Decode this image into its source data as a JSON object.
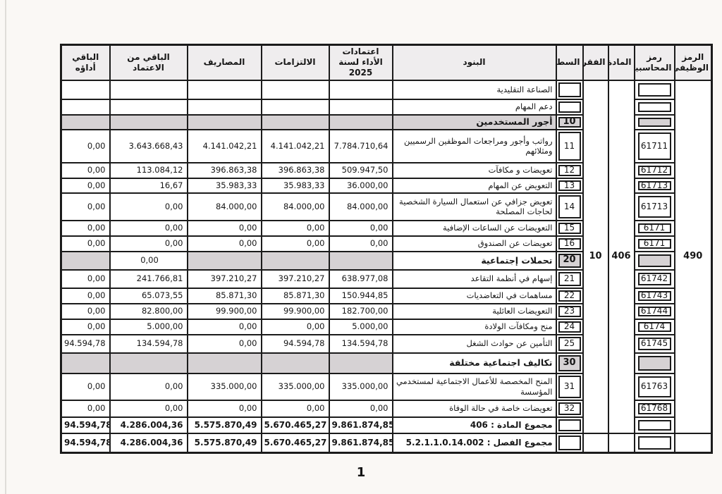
{
  "doc": {
    "page_number": "1",
    "table": {
      "columns": [
        {
          "id": "func_code",
          "label": "الرمز الوظيفي"
        },
        {
          "id": "account",
          "label": "رمز المحاسبية"
        },
        {
          "id": "article",
          "label": "المادة"
        },
        {
          "id": "paragraph",
          "label": "الفقرة"
        },
        {
          "id": "line",
          "label": "السطر"
        },
        {
          "id": "items",
          "label": "البنود"
        },
        {
          "id": "credits",
          "label": "اعتمادات الأداء لسنة 2025"
        },
        {
          "id": "commitments",
          "label": "الالتزامات"
        },
        {
          "id": "expenses",
          "label": "المصاريف"
        },
        {
          "id": "remaining",
          "label": "الباقي من الاعتماد"
        },
        {
          "id": "due",
          "label": "الباقي أداؤه"
        }
      ],
      "merged": {
        "func_code_value": "490",
        "article_value": "406",
        "paragraph_value": "10"
      },
      "rows": [
        {
          "type": "section",
          "label": "الصناعة التقليدية"
        },
        {
          "type": "section",
          "label": "دعم المهام"
        },
        {
          "type": "group",
          "line": "10",
          "label": "أجور المستخدمين",
          "shaded_label": true
        },
        {
          "type": "item",
          "line": "11",
          "label": "رواتب وأجور ومراجعات الموظفين الرسميين ومثلائهم",
          "account": "61711",
          "credits": "7.784.710,64",
          "commitments": "4.141.042,21",
          "expenses": "4.141.042,21",
          "remaining": "3.643.668,43",
          "due": "0,00"
        },
        {
          "type": "item",
          "line": "12",
          "label": "تعويضات و مكافآت",
          "account": "61712",
          "credits": "509.947,50",
          "commitments": "396.863,38",
          "expenses": "396.863,38",
          "remaining": "113.084,12",
          "due": "0,00"
        },
        {
          "type": "item",
          "line": "13",
          "label": "التعويض عن المهام",
          "account": "61713",
          "credits": "36.000,00",
          "commitments": "35.983,33",
          "expenses": "35.983,33",
          "remaining": "16,67",
          "due": "0,00"
        },
        {
          "type": "item",
          "line": "14",
          "label": "تعويض جزافي عن استعمال السيارة الشخصية لحاجات المصلحة",
          "account": "61713",
          "credits": "84.000,00",
          "commitments": "84.000,00",
          "expenses": "84.000,00",
          "remaining": "0,00",
          "due": "0,00"
        },
        {
          "type": "item",
          "line": "15",
          "label": "التعويضات عن الساعات الإضافية",
          "account": "6171",
          "credits": "0,00",
          "commitments": "0,00",
          "expenses": "0,00",
          "remaining": "0,00",
          "due": "0,00"
        },
        {
          "type": "item",
          "line": "16",
          "label": "تعويضات عن الصندوق",
          "account": "6171",
          "credits": "0,00",
          "commitments": "0,00",
          "expenses": "0,00",
          "remaining": "0,00",
          "due": "0,00"
        },
        {
          "type": "group",
          "line": "20",
          "label": "تحملات إجتماعية",
          "shaded_label": false,
          "remaining": "0,00"
        },
        {
          "type": "item",
          "line": "21",
          "label": "إسهام في أنظمة التقاعد",
          "account": "61742",
          "credits": "638.977,08",
          "commitments": "397.210,27",
          "expenses": "397.210,27",
          "remaining": "241.766,81",
          "due": "0,00"
        },
        {
          "type": "item",
          "line": "22",
          "label": "مساهمات في التعاضديات",
          "account": "61743",
          "credits": "150.944,85",
          "commitments": "85.871,30",
          "expenses": "85.871,30",
          "remaining": "65.073,55",
          "due": "0,00"
        },
        {
          "type": "item",
          "line": "23",
          "label": "التعويضات العائلية",
          "account": "61744",
          "credits": "182.700,00",
          "commitments": "99.900,00",
          "expenses": "99.900,00",
          "remaining": "82.800,00",
          "due": "0,00"
        },
        {
          "type": "item",
          "line": "24",
          "label": "منح ومكافآت الولادة",
          "account": "6174",
          "credits": "5.000,00",
          "commitments": "0,00",
          "expenses": "0,00",
          "remaining": "5.000,00",
          "due": "0,00"
        },
        {
          "type": "item",
          "line": "25",
          "label": "التأمين عن حوادث الشغل",
          "account": "61745",
          "credits": "134.594,78",
          "commitments": "94.594,78",
          "expenses": "0,00",
          "remaining": "134.594,78",
          "due": "94.594,78"
        },
        {
          "type": "group",
          "line": "30",
          "label": "تكاليف اجتماعية مختلفة",
          "shaded_label": false
        },
        {
          "type": "item",
          "line": "31",
          "label": "المنح المخصصة للأعمال الاجتماعية لمستخدمي المؤسسة",
          "account": "61763",
          "credits": "335.000,00",
          "commitments": "335.000,00",
          "expenses": "335.000,00",
          "remaining": "0,00",
          "due": "0,00"
        },
        {
          "type": "item",
          "line": "32",
          "label": "تعويضات خاصة في حالة الوفاة",
          "account": "61768",
          "credits": "0,00",
          "commitments": "0,00",
          "expenses": "0,00",
          "remaining": "0,00",
          "due": "0,00"
        },
        {
          "type": "total",
          "label": "مجموع المادة : 406",
          "credits": "9.861.874,85",
          "commitments": "5.670.465,27",
          "expenses": "5.575.870,49",
          "remaining": "4.286.004,36",
          "due": "94.594,78"
        },
        {
          "type": "total_chapter",
          "label": "مجموع الفصل : 5.2.1.1.0.14.002",
          "credits": "9.861.874,85",
          "commitments": "5.670.465,27",
          "expenses": "5.575.870,49",
          "remaining": "4.286.004,36",
          "due": "94.594,78"
        }
      ]
    }
  }
}
